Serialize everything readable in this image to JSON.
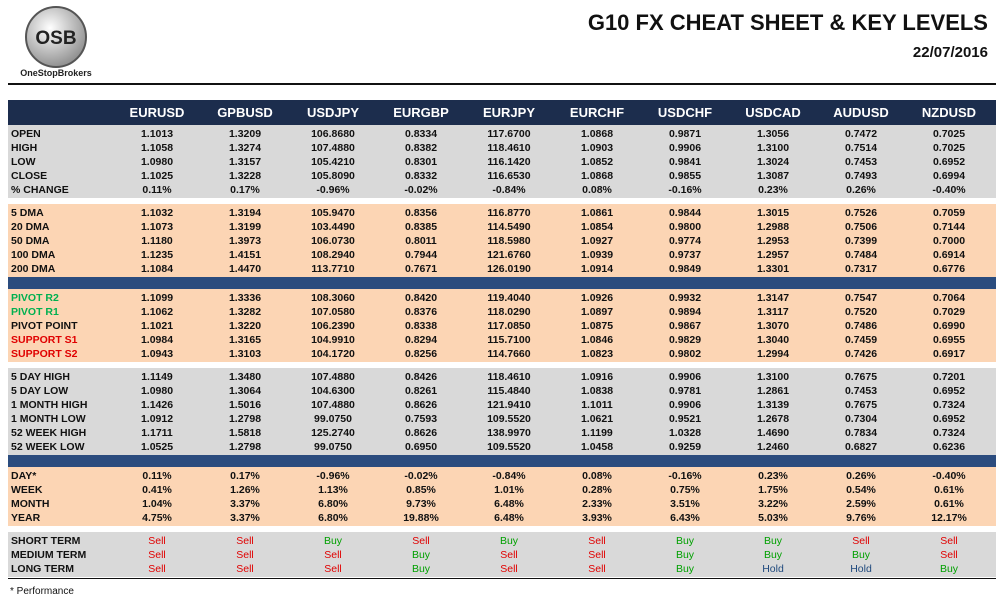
{
  "header": {
    "logo_text": "OSB",
    "logo_caption": "OneStopBrokers",
    "title": "G10 FX CHEAT SHEET & KEY LEVELS",
    "date": "22/07/2016"
  },
  "table": {
    "columns": [
      "EURUSD",
      "GPBUSD",
      "USDJPY",
      "EURGBP",
      "EURJPY",
      "EURCHF",
      "USDCHF",
      "USDCAD",
      "AUDUSD",
      "NZDUSD"
    ],
    "signal_colors": {
      "Sell": "#e00000",
      "Buy": "#00a000",
      "Hold": "#1f497d"
    },
    "sections": [
      {
        "rows": [
          {
            "label": "OPEN",
            "values": [
              "1.1013",
              "1.3209",
              "106.8680",
              "0.8334",
              "117.6700",
              "1.0868",
              "0.9871",
              "1.3056",
              "0.7472",
              "0.7025"
            ]
          },
          {
            "label": "HIGH",
            "values": [
              "1.1058",
              "1.3274",
              "107.4880",
              "0.8382",
              "118.4610",
              "1.0903",
              "0.9906",
              "1.3100",
              "0.7514",
              "0.7025"
            ]
          },
          {
            "label": "LOW",
            "values": [
              "1.0980",
              "1.3157",
              "105.4210",
              "0.8301",
              "116.1420",
              "1.0852",
              "0.9841",
              "1.3024",
              "0.7453",
              "0.6952"
            ]
          },
          {
            "label": "CLOSE",
            "values": [
              "1.1025",
              "1.3228",
              "105.8090",
              "0.8332",
              "116.6530",
              "1.0868",
              "0.9855",
              "1.3087",
              "0.7493",
              "0.6994"
            ]
          },
          {
            "label": "% CHANGE",
            "values": [
              "0.11%",
              "0.17%",
              "-0.96%",
              "-0.02%",
              "-0.84%",
              "0.08%",
              "-0.16%",
              "0.23%",
              "0.26%",
              "-0.40%"
            ]
          }
        ]
      },
      {
        "rows": [
          {
            "label": "5 DMA",
            "values": [
              "1.1032",
              "1.3194",
              "105.9470",
              "0.8356",
              "116.8770",
              "1.0861",
              "0.9844",
              "1.3015",
              "0.7526",
              "0.7059"
            ]
          },
          {
            "label": "20 DMA",
            "values": [
              "1.1073",
              "1.3199",
              "103.4490",
              "0.8385",
              "114.5490",
              "1.0854",
              "0.9800",
              "1.2988",
              "0.7506",
              "0.7144"
            ]
          },
          {
            "label": "50 DMA",
            "values": [
              "1.1180",
              "1.3973",
              "106.0730",
              "0.8011",
              "118.5980",
              "1.0927",
              "0.9774",
              "1.2953",
              "0.7399",
              "0.7000"
            ]
          },
          {
            "label": "100 DMA",
            "values": [
              "1.1235",
              "1.4151",
              "108.2940",
              "0.7944",
              "121.6760",
              "1.0939",
              "0.9737",
              "1.2957",
              "0.7484",
              "0.6914"
            ]
          },
          {
            "label": "200 DMA",
            "values": [
              "1.1084",
              "1.4470",
              "113.7710",
              "0.7671",
              "126.0190",
              "1.0914",
              "0.9849",
              "1.3301",
              "0.7317",
              "0.6776"
            ]
          }
        ]
      },
      {
        "rows": [
          {
            "label": "PIVOT R2",
            "label_color": "#00b050",
            "values": [
              "1.1099",
              "1.3336",
              "108.3060",
              "0.8420",
              "119.4040",
              "1.0926",
              "0.9932",
              "1.3147",
              "0.7547",
              "0.7064"
            ]
          },
          {
            "label": "PIVOT R1",
            "label_color": "#00b050",
            "values": [
              "1.1062",
              "1.3282",
              "107.0580",
              "0.8376",
              "118.0290",
              "1.0897",
              "0.9894",
              "1.3117",
              "0.7520",
              "0.7029"
            ]
          },
          {
            "label": "PIVOT POINT",
            "values": [
              "1.1021",
              "1.3220",
              "106.2390",
              "0.8338",
              "117.0850",
              "1.0875",
              "0.9867",
              "1.3070",
              "0.7486",
              "0.6990"
            ]
          },
          {
            "label": "SUPPORT S1",
            "label_color": "#e00000",
            "values": [
              "1.0984",
              "1.3165",
              "104.9910",
              "0.8294",
              "115.7100",
              "1.0846",
              "0.9829",
              "1.3040",
              "0.7459",
              "0.6955"
            ]
          },
          {
            "label": "SUPPORT S2",
            "label_color": "#e00000",
            "values": [
              "1.0943",
              "1.3103",
              "104.1720",
              "0.8256",
              "114.7660",
              "1.0823",
              "0.9802",
              "1.2994",
              "0.7426",
              "0.6917"
            ]
          }
        ]
      },
      {
        "rows": [
          {
            "label": "5 DAY HIGH",
            "values": [
              "1.1149",
              "1.3480",
              "107.4880",
              "0.8426",
              "118.4610",
              "1.0916",
              "0.9906",
              "1.3100",
              "0.7675",
              "0.7201"
            ]
          },
          {
            "label": "5 DAY LOW",
            "values": [
              "1.0980",
              "1.3064",
              "104.6300",
              "0.8261",
              "115.4840",
              "1.0838",
              "0.9781",
              "1.2861",
              "0.7453",
              "0.6952"
            ]
          },
          {
            "label": "1 MONTH HIGH",
            "values": [
              "1.1426",
              "1.5016",
              "107.4880",
              "0.8626",
              "121.9410",
              "1.1011",
              "0.9906",
              "1.3139",
              "0.7675",
              "0.7324"
            ]
          },
          {
            "label": "1 MONTH LOW",
            "values": [
              "1.0912",
              "1.2798",
              "99.0750",
              "0.7593",
              "109.5520",
              "1.0621",
              "0.9521",
              "1.2678",
              "0.7304",
              "0.6952"
            ]
          },
          {
            "label": "52 WEEK HIGH",
            "values": [
              "1.1711",
              "1.5818",
              "125.2740",
              "0.8626",
              "138.9970",
              "1.1199",
              "1.0328",
              "1.4690",
              "0.7834",
              "0.7324"
            ]
          },
          {
            "label": "52 WEEK LOW",
            "values": [
              "1.0525",
              "1.2798",
              "99.0750",
              "0.6950",
              "109.5520",
              "1.0458",
              "0.9259",
              "1.2460",
              "0.6827",
              "0.6236"
            ]
          }
        ]
      },
      {
        "rows": [
          {
            "label": "DAY*",
            "values": [
              "0.11%",
              "0.17%",
              "-0.96%",
              "-0.02%",
              "-0.84%",
              "0.08%",
              "-0.16%",
              "0.23%",
              "0.26%",
              "-0.40%"
            ]
          },
          {
            "label": "WEEK",
            "values": [
              "0.41%",
              "1.26%",
              "1.13%",
              "0.85%",
              "1.01%",
              "0.28%",
              "0.75%",
              "1.75%",
              "0.54%",
              "0.61%"
            ]
          },
          {
            "label": "MONTH",
            "values": [
              "1.04%",
              "3.37%",
              "6.80%",
              "9.73%",
              "6.48%",
              "2.33%",
              "3.51%",
              "3.22%",
              "2.59%",
              "0.61%"
            ]
          },
          {
            "label": "YEAR",
            "values": [
              "4.75%",
              "3.37%",
              "6.80%",
              "19.88%",
              "6.48%",
              "3.93%",
              "6.43%",
              "5.03%",
              "9.76%",
              "12.17%"
            ]
          }
        ]
      },
      {
        "signal": true,
        "rows": [
          {
            "label": "SHORT TERM",
            "values": [
              "Sell",
              "Sell",
              "Buy",
              "Sell",
              "Buy",
              "Sell",
              "Buy",
              "Buy",
              "Sell",
              "Sell"
            ]
          },
          {
            "label": "MEDIUM TERM",
            "values": [
              "Sell",
              "Sell",
              "Sell",
              "Buy",
              "Sell",
              "Sell",
              "Buy",
              "Buy",
              "Buy",
              "Sell"
            ]
          },
          {
            "label": "LONG TERM",
            "values": [
              "Sell",
              "Sell",
              "Sell",
              "Buy",
              "Sell",
              "Sell",
              "Buy",
              "Hold",
              "Hold",
              "Buy"
            ]
          }
        ]
      }
    ]
  },
  "footnote": "* Performance"
}
